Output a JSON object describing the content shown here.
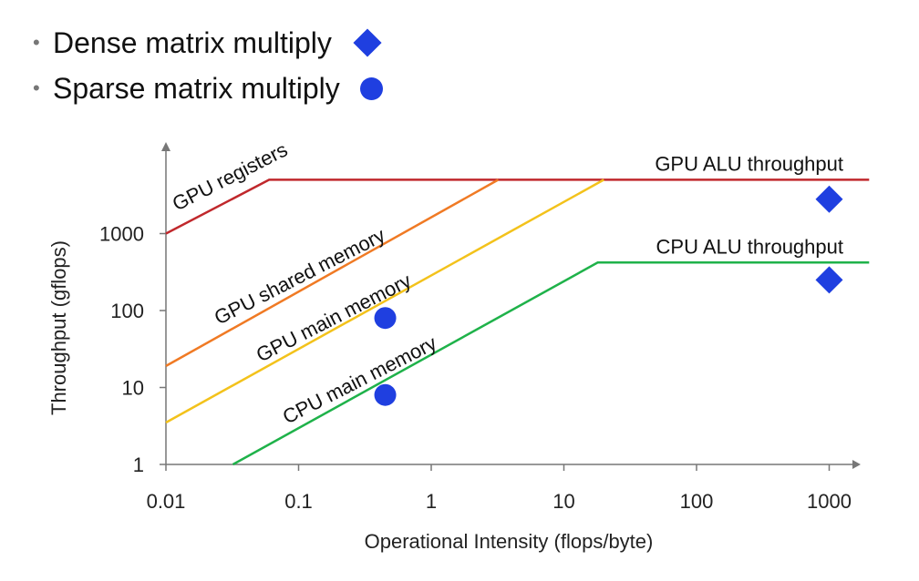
{
  "legend": {
    "items": [
      {
        "label": "Dense matrix multiply",
        "marker": "diamond"
      },
      {
        "label": "Sparse matrix multiply",
        "marker": "circle"
      }
    ]
  },
  "chart_data": {
    "type": "line",
    "xlabel": "Operational Intensity (flops/byte)",
    "ylabel": "Throughput (gflops)",
    "xscale": "log",
    "yscale": "log",
    "xlim": [
      0.01,
      2000
    ],
    "ylim": [
      1,
      9000
    ],
    "xticks": [
      {
        "value": 0.01,
        "label": "0.01"
      },
      {
        "value": 0.1,
        "label": "0.1"
      },
      {
        "value": 1,
        "label": "1"
      },
      {
        "value": 10,
        "label": "10"
      },
      {
        "value": 100,
        "label": "100"
      },
      {
        "value": 1000,
        "label": "1000"
      }
    ],
    "yticks": [
      {
        "value": 1,
        "label": "1"
      },
      {
        "value": 10,
        "label": "10"
      },
      {
        "value": 100,
        "label": "100"
      },
      {
        "value": 1000,
        "label": "1000"
      }
    ],
    "grid": false,
    "series": [
      {
        "label": "GPU registers",
        "color": "#c0282c",
        "points": [
          [
            0.01,
            1000
          ],
          [
            0.06,
            5000
          ],
          [
            2000,
            5000
          ]
        ]
      },
      {
        "label": "GPU shared memory",
        "color": "#f07a24",
        "points": [
          [
            0.01,
            19
          ],
          [
            3.2,
            5000
          ]
        ]
      },
      {
        "label": "GPU main memory",
        "color": "#f3c21b",
        "points": [
          [
            0.01,
            3.5
          ],
          [
            20,
            5000
          ]
        ]
      },
      {
        "label": "CPU main memory",
        "color": "#1fb24a",
        "points": [
          [
            0.032,
            1
          ],
          [
            18,
            420
          ],
          [
            2000,
            420
          ]
        ]
      }
    ],
    "ceilings": [
      {
        "label": "GPU ALU throughput",
        "value": 5000
      },
      {
        "label": "CPU ALU throughput",
        "value": 420
      }
    ],
    "markers": [
      {
        "type": "diamond",
        "x": 1000,
        "y": 2800,
        "color": "#1f3fe0"
      },
      {
        "type": "diamond",
        "x": 1000,
        "y": 250,
        "color": "#1f3fe0"
      },
      {
        "type": "circle",
        "x": 0.45,
        "y": 80,
        "color": "#1f3fe0"
      },
      {
        "type": "circle",
        "x": 0.45,
        "y": 8,
        "color": "#1f3fe0"
      }
    ]
  }
}
